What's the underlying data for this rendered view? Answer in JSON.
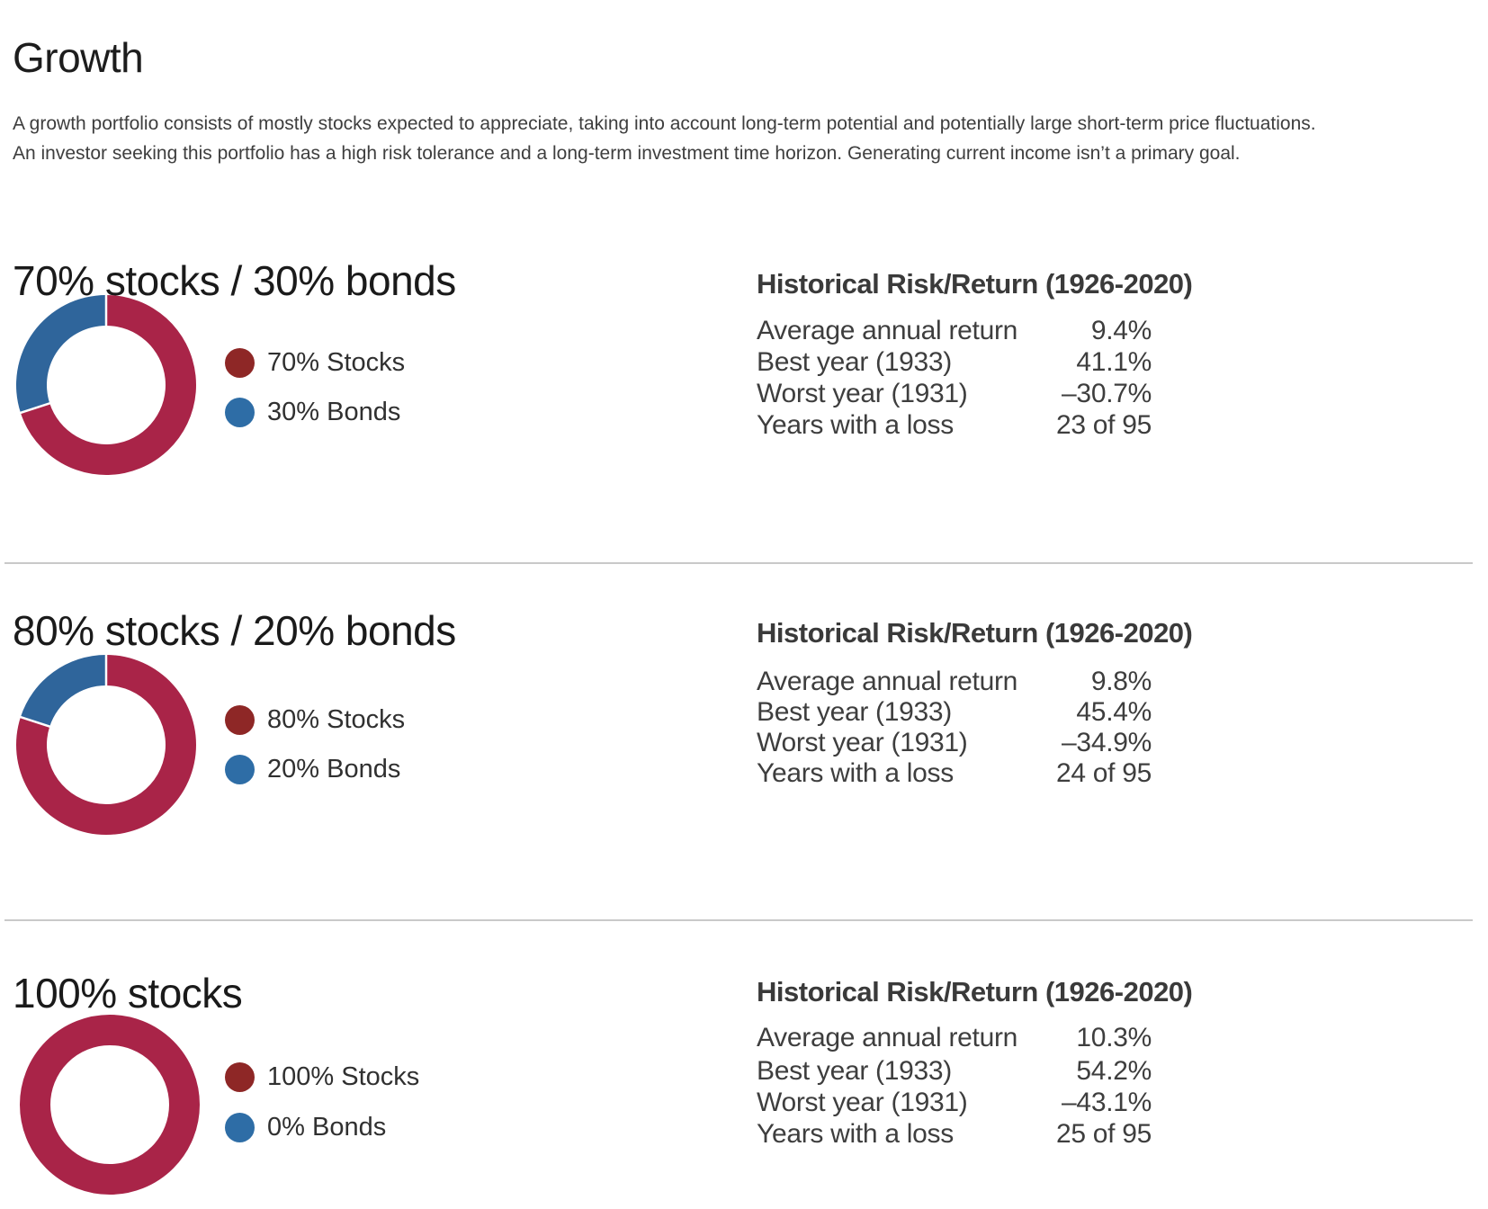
{
  "page": {
    "title": "Growth",
    "description": "A growth portfolio consists of mostly stocks expected to appreciate, taking into account long-term potential and potentially large short-term price fluctuations. An investor seeking this portfolio has a high risk tolerance and a long-term investment time horizon. Generating current income isn’t a primary goal."
  },
  "colors": {
    "stocks_slice": "#A92448",
    "bonds_slice": "#2F659B",
    "stocks_legend_dot": "#8E2726",
    "bonds_legend_dot": "#2E6DA6",
    "divider": "#C9C9C9"
  },
  "sections": [
    {
      "heading": "70% stocks / 30% bonds",
      "chart": {
        "stocks_pct": 70,
        "bonds_pct": 30
      },
      "legend": [
        {
          "label": "70% Stocks"
        },
        {
          "label": "30% Bonds"
        }
      ],
      "table": {
        "heading": "Historical Risk/Return (1926-2020)",
        "rows": [
          {
            "label": "Average annual return",
            "value": "9.4%"
          },
          {
            "label": "Best year (1933)",
            "value": "41.1%"
          },
          {
            "label": "Worst year (1931)",
            "value": "–30.7%"
          },
          {
            "label": "Years with a loss",
            "value": "23 of 95"
          }
        ]
      }
    },
    {
      "heading": "80% stocks / 20% bonds",
      "chart": {
        "stocks_pct": 80,
        "bonds_pct": 20
      },
      "legend": [
        {
          "label": "80% Stocks"
        },
        {
          "label": "20% Bonds"
        }
      ],
      "table": {
        "heading": "Historical Risk/Return (1926-2020)",
        "rows": [
          {
            "label": "Average annual return",
            "value": "9.8%"
          },
          {
            "label": "Best year (1933)",
            "value": "45.4%"
          },
          {
            "label": "Worst year (1931)",
            "value": "–34.9%"
          },
          {
            "label": "Years with a loss",
            "value": "24 of 95"
          }
        ]
      }
    },
    {
      "heading": "100% stocks",
      "chart": {
        "stocks_pct": 100,
        "bonds_pct": 0
      },
      "legend": [
        {
          "label": "100% Stocks"
        },
        {
          "label": "0% Bonds"
        }
      ],
      "table": {
        "heading": "Historical Risk/Return (1926-2020)",
        "rows": [
          {
            "label": "Average annual return",
            "value": "10.3%"
          },
          {
            "label": "Best year (1933)",
            "value": "54.2%"
          },
          {
            "label": "Worst year (1931)",
            "value": "–43.1%"
          },
          {
            "label": "Years with a loss",
            "value": "25 of 95"
          }
        ]
      }
    }
  ],
  "chart_data": [
    {
      "type": "pie",
      "title": "70% stocks / 30% bonds",
      "labels": [
        "70% Stocks",
        "30% Bonds"
      ],
      "values": [
        70,
        30
      ],
      "colors": [
        "#A92448",
        "#2F659B"
      ],
      "donut": true,
      "legend_position": "right",
      "stats_title": "Historical Risk/Return (1926-2020)",
      "stats": {
        "Average annual return": "9.4%",
        "Best year (1933)": "41.1%",
        "Worst year (1931)": "–30.7%",
        "Years with a loss": "23 of 95"
      }
    },
    {
      "type": "pie",
      "title": "80% stocks / 20% bonds",
      "labels": [
        "80% Stocks",
        "20% Bonds"
      ],
      "values": [
        80,
        20
      ],
      "colors": [
        "#A92448",
        "#2F659B"
      ],
      "donut": true,
      "legend_position": "right",
      "stats_title": "Historical Risk/Return (1926-2020)",
      "stats": {
        "Average annual return": "9.8%",
        "Best year (1933)": "45.4%",
        "Worst year (1931)": "–34.9%",
        "Years with a loss": "24 of 95"
      }
    },
    {
      "type": "pie",
      "title": "100% stocks",
      "labels": [
        "100% Stocks",
        "0% Bonds"
      ],
      "values": [
        100,
        0
      ],
      "colors": [
        "#A92448",
        "#2F659B"
      ],
      "donut": true,
      "legend_position": "right",
      "stats_title": "Historical Risk/Return (1926-2020)",
      "stats": {
        "Average annual return": "10.3%",
        "Best year (1933)": "54.2%",
        "Worst year (1931)": "–43.1%",
        "Years with a loss": "25 of 95"
      }
    }
  ]
}
